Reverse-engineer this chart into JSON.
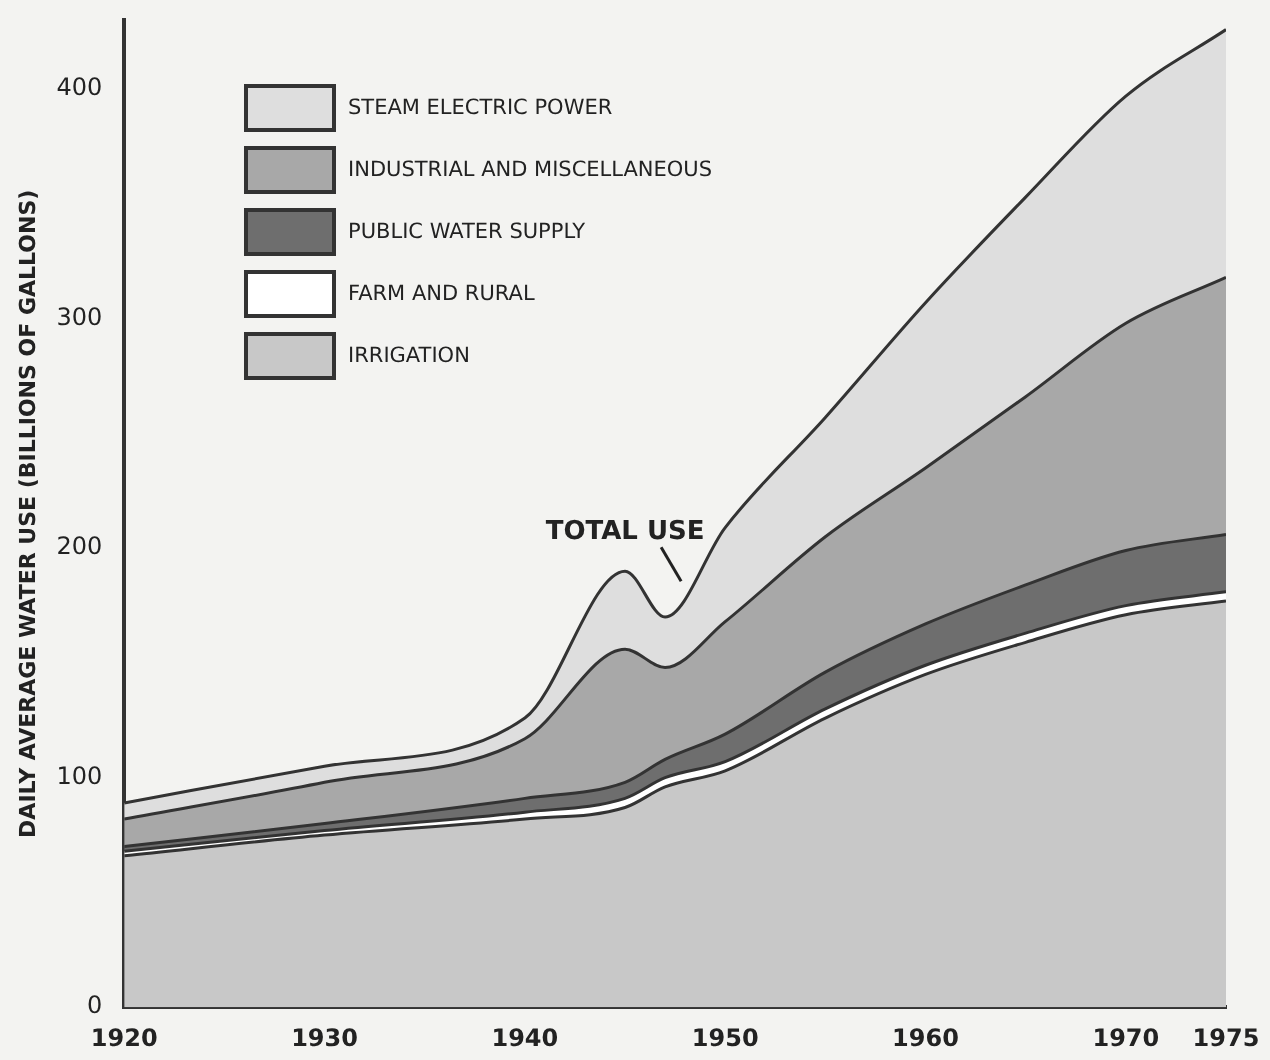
{
  "chart_data": {
    "type": "area",
    "stacked": true,
    "ylabel": "DAILY AVERAGE WATER USE (BILLIONS OF GALLONS)",
    "x": [
      1920,
      1930,
      1940,
      1945,
      1947,
      1950,
      1955,
      1960,
      1965,
      1970,
      1975
    ],
    "series": [
      {
        "name": "IRRIGATION",
        "color": "#c8c8c8",
        "values": [
          66,
          75,
          82,
          87,
          96,
          103,
          126,
          145,
          159,
          171,
          177
        ]
      },
      {
        "name": "FARM AND RURAL",
        "color": "#ffffff",
        "values": [
          2,
          2,
          3,
          4,
          4,
          4,
          4,
          4,
          4,
          4,
          4
        ]
      },
      {
        "name": "PUBLIC WATER SUPPLY",
        "color": "#6e6e6e",
        "values": [
          2,
          3,
          6,
          7,
          8,
          12,
          16,
          18,
          21,
          24,
          25
        ]
      },
      {
        "name": "INDUSTRIAL AND MISCELLANEOUS",
        "color": "#a8a8a8",
        "values": [
          12,
          18,
          26,
          58,
          40,
          49,
          59,
          68,
          82,
          99,
          112
        ]
      },
      {
        "name": "STEAM ELECTRIC POWER",
        "color": "#dedede",
        "values": [
          7,
          7,
          9,
          34,
          22,
          41,
          52,
          72,
          87,
          99,
          108
        ]
      }
    ],
    "xlim": [
      1920,
      1975
    ],
    "xticks": [
      1920,
      1930,
      1940,
      1950,
      1960,
      1970,
      1975
    ],
    "ylim": [
      0,
      430
    ],
    "yticks": [
      0,
      100,
      200,
      300,
      400
    ],
    "annotations": [
      {
        "text": "TOTAL USE",
        "x": 1948,
        "y": 183
      }
    ],
    "legend": "top left",
    "grid": false
  }
}
